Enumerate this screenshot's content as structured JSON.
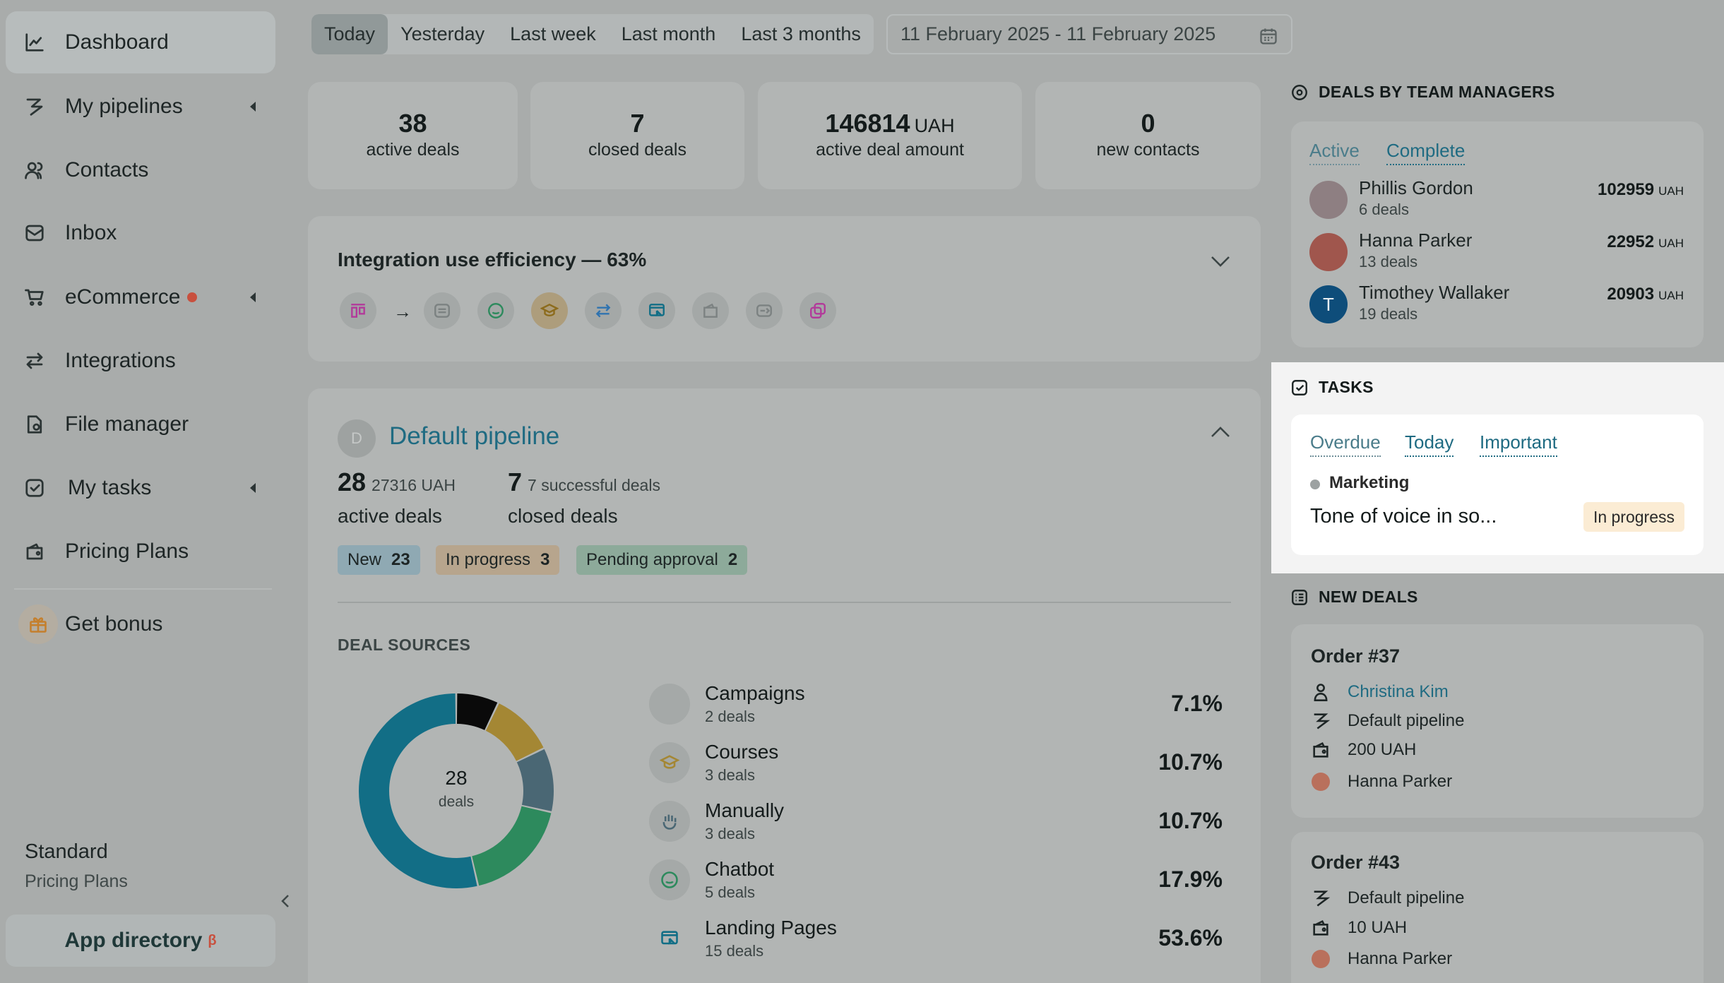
{
  "sidebar": {
    "items": [
      {
        "label": "Dashboard",
        "icon": "chart-line-icon"
      },
      {
        "label": "My pipelines",
        "icon": "pipeline-icon"
      },
      {
        "label": "Contacts",
        "icon": "contacts-icon"
      },
      {
        "label": "Inbox",
        "icon": "inbox-icon"
      },
      {
        "label": "eCommerce",
        "icon": "cart-icon"
      },
      {
        "label": "Integrations",
        "icon": "integrations-icon"
      },
      {
        "label": "File manager",
        "icon": "file-icon"
      },
      {
        "label": "My tasks",
        "icon": "tasks-icon"
      },
      {
        "label": "Pricing Plans",
        "icon": "wallet-icon"
      }
    ],
    "bonus": "Get bonus",
    "plan_name": "Standard",
    "plan_sub": "Pricing Plans",
    "app_directory": "App directory",
    "beta": "β"
  },
  "topbar": {
    "periods": [
      "Today",
      "Yesterday",
      "Last week",
      "Last month",
      "Last 3 months"
    ],
    "active_period": "Today",
    "date_range": "11 February 2025 - 11 February 2025"
  },
  "stats": [
    {
      "value": "38",
      "unit": "",
      "label": "active deals"
    },
    {
      "value": "7",
      "unit": "",
      "label": "closed deals"
    },
    {
      "value": "146814",
      "unit": "UAH",
      "label": "active deal amount"
    },
    {
      "value": "0",
      "unit": "",
      "label": "new contacts"
    }
  ],
  "efficiency": {
    "title": "Integration use efficiency — 63%"
  },
  "pipeline": {
    "avatar": "D",
    "title": "Default pipeline",
    "active_count": "28",
    "active_amount": "27316 UAH",
    "active_label": "active deals",
    "closed_count": "7",
    "closed_sub": "7 successful deals",
    "closed_label": "closed deals",
    "stages": [
      {
        "label": "New",
        "count": "23",
        "color": "#8fa9b3"
      },
      {
        "label": "In progress",
        "count": "3",
        "color": "#b7a58d"
      },
      {
        "label": "Pending approval",
        "count": "2",
        "color": "#8daa9a"
      }
    ],
    "sources_caption": "DEAL SOURCES",
    "donut_total": "28",
    "donut_unit": "deals"
  },
  "chart_data": {
    "type": "pie",
    "categories": [
      "Campaigns",
      "Courses",
      "Manually",
      "Chatbot",
      "Landing Pages"
    ],
    "values": [
      7.1,
      10.7,
      10.7,
      17.9,
      53.6
    ],
    "counts": [
      2,
      3,
      3,
      5,
      15
    ],
    "colors": [
      "#0a0a0a",
      "#a48734",
      "#4a6774",
      "#2d8a5d",
      "#126e86"
    ]
  },
  "sources": [
    {
      "name": "Campaigns",
      "sub": "2 deals",
      "pct": "7.1%"
    },
    {
      "name": "Courses",
      "sub": "3 deals",
      "pct": "10.7%"
    },
    {
      "name": "Manually",
      "sub": "3 deals",
      "pct": "10.7%"
    },
    {
      "name": "Chatbot",
      "sub": "5 deals",
      "pct": "17.9%"
    },
    {
      "name": "Landing Pages",
      "sub": "15 deals",
      "pct": "53.6%"
    }
  ],
  "managers": {
    "heading": "DEALS BY TEAM MANAGERS",
    "tabs": [
      "Active",
      "Complete"
    ],
    "rows": [
      {
        "name": "Phillis Gordon",
        "deals": "6 deals",
        "amount": "102959",
        "unit": "UAH"
      },
      {
        "name": "Hanna Parker",
        "deals": "13 deals",
        "amount": "22952",
        "unit": "UAH"
      },
      {
        "name": "Timothey Wallaker",
        "deals": "19 deals",
        "amount": "20903",
        "unit": "UAH",
        "initial": "T"
      }
    ]
  },
  "tasks": {
    "heading": "TASKS",
    "tabs": [
      "Overdue",
      "Today",
      "Important"
    ],
    "category": "Marketing",
    "title": "Tone of voice in so...",
    "status": "In progress"
  },
  "new_deals": {
    "heading": "NEW DEALS",
    "orders": [
      {
        "title": "Order #37",
        "contact": "Christina Kim",
        "pipeline": "Default pipeline",
        "amount": "200 UAH",
        "manager": "Hanna Parker"
      },
      {
        "title": "Order #43",
        "pipeline": "Default pipeline",
        "amount": "10 UAH",
        "manager": "Hanna Parker"
      }
    ]
  }
}
